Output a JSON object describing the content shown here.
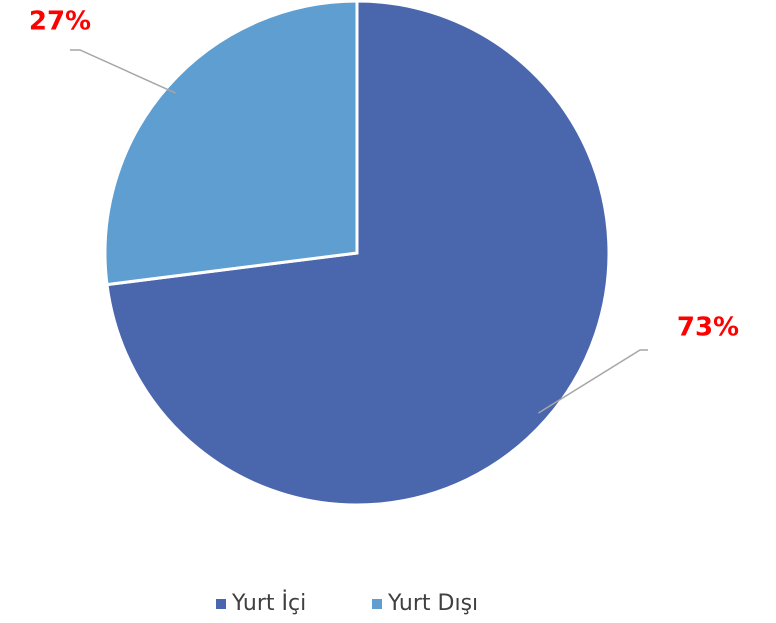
{
  "chart_data": {
    "type": "pie",
    "categories": [
      "Yurt İçi",
      "Yurt Dışı"
    ],
    "values": [
      73,
      27
    ],
    "value_labels": [
      "73%",
      "27%"
    ],
    "colors": [
      "#4a66ad",
      "#5f9ed1"
    ],
    "legend": "bottom"
  }
}
